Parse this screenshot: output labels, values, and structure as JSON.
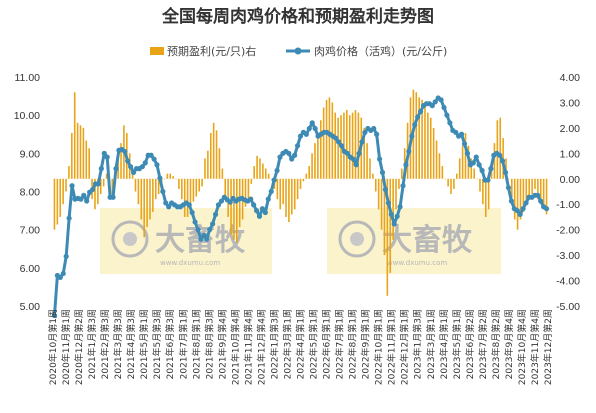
{
  "chart_data": {
    "type": "bar+line",
    "title": "全国每周肉鸡价格和预期盈利走势图",
    "legend_position": "top",
    "grid": false,
    "series": [
      {
        "name": "预期盈利(元/只)右",
        "type": "bar",
        "axis": "right",
        "color": "#E8A317",
        "values": [
          -2.0,
          -1.8,
          -1.5,
          -1.0,
          -0.5,
          0.5,
          1.8,
          3.4,
          2.2,
          2.1,
          2.0,
          1.5,
          1.2,
          -0.8,
          -1.2,
          -1.0,
          -0.6,
          -0.3,
          0.2,
          0.0,
          -0.6,
          -0.2,
          0.8,
          1.4,
          2.1,
          1.8,
          1.0,
          0.4,
          -0.5,
          -1.0,
          -1.6,
          -2.3,
          -1.9,
          -1.6,
          -1.3,
          -0.8,
          -0.6,
          -0.2,
          0.0,
          0.2,
          0.2,
          0.1,
          0.0,
          -0.4,
          -0.8,
          -1.5,
          -1.5,
          -1.2,
          -0.9,
          -0.7,
          -0.5,
          -0.3,
          0.8,
          1.1,
          1.8,
          2.2,
          1.9,
          1.2,
          0.4,
          -0.8,
          -1.5,
          -2.2,
          -2.4,
          -2.5,
          -1.9,
          -1.6,
          -1.1,
          -0.8,
          -0.2,
          0.5,
          0.9,
          0.8,
          0.6,
          0.4,
          0.2,
          0.0,
          -0.4,
          -0.8,
          -1.2,
          -1.0,
          -1.5,
          -1.7,
          -1.4,
          -1.2,
          -0.8,
          -0.4,
          -0.1,
          0.2,
          0.5,
          1.0,
          1.4,
          1.8,
          2.3,
          2.8,
          3.1,
          3.2,
          3.0,
          2.6,
          2.4,
          2.5,
          2.6,
          2.7,
          2.5,
          2.6,
          2.7,
          2.6,
          2.4,
          2.0,
          1.4,
          0.8,
          0.2,
          -0.5,
          -1.2,
          -2.0,
          -3.0,
          -4.6,
          -3.7,
          -2.4,
          -1.2,
          -0.4,
          0.4,
          1.2,
          2.2,
          3.2,
          3.5,
          3.4,
          3.2,
          3.1,
          2.9,
          2.6,
          2.4,
          2.0,
          1.5,
          1.0,
          0.5,
          0.0,
          -0.3,
          -0.6,
          -0.4,
          0.2,
          0.8,
          1.3,
          1.8,
          1.3,
          0.8,
          0.4,
          0.0,
          -0.5,
          -1.0,
          -1.5,
          -1.2,
          0.4,
          1.4,
          2.3,
          2.4,
          1.6,
          0.8,
          0.0,
          -0.8,
          -1.6,
          -2.0,
          -1.6,
          -1.3,
          -1.0,
          -0.7,
          -0.6,
          -0.4,
          -0.8,
          -1.0,
          -1.2,
          -1.4
        ]
      },
      {
        "name": "肉鸡价格（活鸡）(元/公斤)",
        "type": "line",
        "axis": "left",
        "color": "#3D8BB5",
        "values": [
          4.75,
          5.8,
          5.75,
          5.85,
          6.3,
          7.3,
          8.15,
          7.8,
          7.82,
          7.8,
          7.9,
          7.75,
          7.98,
          8.05,
          8.2,
          8.2,
          8.6,
          9.0,
          8.9,
          7.85,
          7.85,
          8.6,
          9.08,
          9.1,
          9.05,
          8.8,
          8.65,
          8.5,
          8.6,
          8.6,
          8.65,
          8.75,
          8.95,
          8.95,
          8.85,
          8.7,
          8.35,
          8.0,
          7.7,
          7.6,
          7.7,
          7.65,
          7.6,
          7.6,
          7.65,
          7.7,
          7.65,
          7.45,
          7.2,
          7.0,
          6.75,
          6.85,
          6.75,
          7.0,
          7.15,
          7.4,
          7.65,
          7.75,
          7.85,
          7.78,
          7.72,
          7.82,
          7.75,
          7.8,
          7.82,
          7.78,
          7.75,
          7.8,
          7.65,
          7.5,
          7.35,
          7.55,
          7.45,
          7.8,
          8.0,
          8.3,
          8.55,
          8.9,
          9.0,
          9.05,
          9.0,
          8.85,
          8.95,
          9.2,
          9.45,
          9.55,
          9.5,
          9.65,
          9.8,
          9.65,
          9.45,
          9.5,
          9.55,
          9.55,
          9.5,
          9.45,
          9.4,
          9.3,
          9.2,
          9.05,
          9.0,
          8.9,
          8.85,
          8.7,
          9.0,
          9.3,
          9.55,
          9.65,
          9.6,
          9.65,
          9.5,
          8.85,
          8.5,
          8.05,
          7.7,
          7.4,
          7.15,
          7.35,
          7.6,
          8.15,
          8.7,
          9.05,
          9.45,
          9.75,
          9.95,
          10.1,
          10.25,
          10.3,
          10.3,
          10.25,
          10.35,
          10.45,
          10.4,
          10.2,
          10.0,
          9.8,
          9.6,
          9.55,
          9.45,
          9.5,
          9.25,
          9.0,
          8.7,
          8.75,
          8.9,
          8.7,
          8.55,
          8.3,
          8.3,
          8.6,
          8.95,
          9.0,
          8.95,
          8.8,
          8.5,
          8.1,
          7.75,
          7.55,
          7.5,
          7.4,
          7.55,
          7.7,
          7.85,
          7.85,
          7.9,
          7.9,
          7.75,
          7.6,
          7.55
        ]
      }
    ],
    "x_start": "2020年10月第1周",
    "x_end": "2023年12月第2周",
    "x_tick_labels": [
      "2020年10月第1周",
      "2020年11月第1周",
      "2020年12月第2周",
      "2021年1月第3周",
      "2021年2月第3周",
      "2021年3月第3周",
      "2021年4月第3周",
      "2021年5月第1周",
      "2021年5月第3周",
      "2021年6月第3周",
      "2021年7月第1周",
      "2021年8月第1周",
      "2021年8月第3周",
      "2021年9月第4周",
      "2021年10月第4周",
      "2021年11月第4周",
      "2021年12月第4周",
      "2022年1月第3周",
      "2022年3月第1周",
      "2022年4月第1周",
      "2022年5月第1周",
      "2022年6月第1周",
      "2022年7月第1周",
      "2022年8月第1周",
      "2022年9月第1周",
      "2022年10月第1周",
      "2022年11月第1周",
      "2022年12月第1周",
      "2023年1月第3周",
      "2023年3月第1周",
      "2023年4月第1周",
      "2023年5月第1周",
      "2023年6月第2周",
      "2023年7月第2周",
      "2023年8月第2周",
      "2023年9月第4周",
      "2023年10月第4周",
      "2023年11月第4周",
      "2023年12月第2周"
    ],
    "y_left": {
      "min": 5.0,
      "max": 11.0,
      "step": 1.0,
      "tick_labels": [
        "11.00",
        "10.00",
        "9.00",
        "8.00",
        "7.00",
        "6.00",
        "5.00"
      ]
    },
    "y_right": {
      "min": -5.0,
      "max": 4.0,
      "step": 1.0,
      "tick_labels": [
        "4.00",
        "3.00",
        "2.00",
        "1.00",
        "0.00",
        "-1.00",
        "-2.00",
        "-3.00",
        "-4.00",
        "-5.00"
      ]
    },
    "watermarks": [
      {
        "brand": "大畜牧",
        "url": "www.dxumu.com"
      },
      {
        "brand": "大畜牧",
        "url": "www.dxumu.com"
      }
    ]
  },
  "colors": {
    "bar": "#E8A317",
    "line": "#3D8BB5",
    "watermark_panel": "#FAF3CC",
    "text": "#333333"
  }
}
